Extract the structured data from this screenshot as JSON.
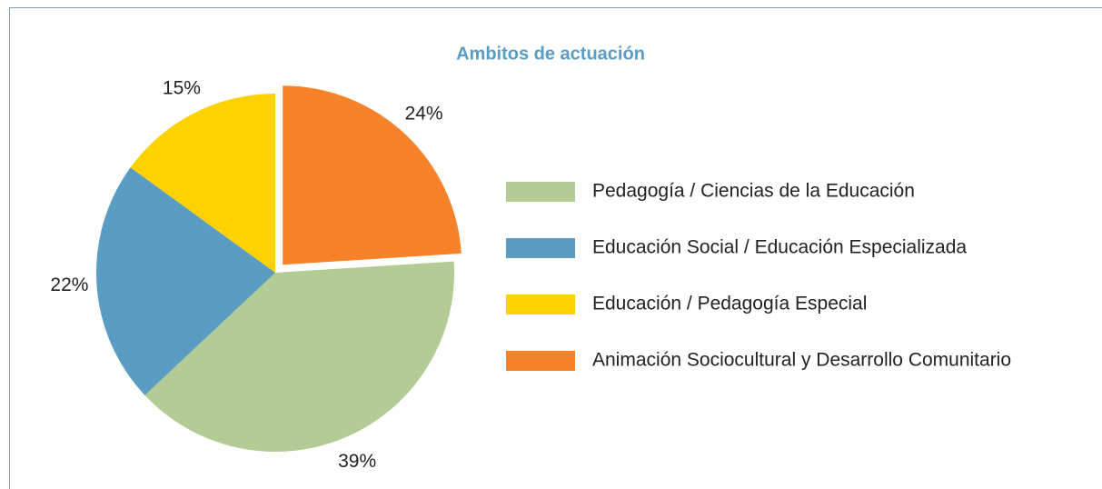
{
  "chart_data": {
    "type": "pie",
    "title": "Ambitos de actuación",
    "categories": [
      "Pedagogía / Ciencias de la Educación",
      "Educación Social / Educación Especializada",
      "Educación / Pedagogía Especial",
      "Animación Sociocultural y Desarrollo Comunitario"
    ],
    "values": [
      39,
      22,
      15,
      24
    ],
    "value_labels": [
      "39%",
      "22%",
      "15%",
      "24%"
    ],
    "colors": [
      "#b3cc95",
      "#5a9cc2",
      "#fed100",
      "#f6832a"
    ],
    "explode": [
      false,
      false,
      false,
      true
    ],
    "legend": "right"
  }
}
